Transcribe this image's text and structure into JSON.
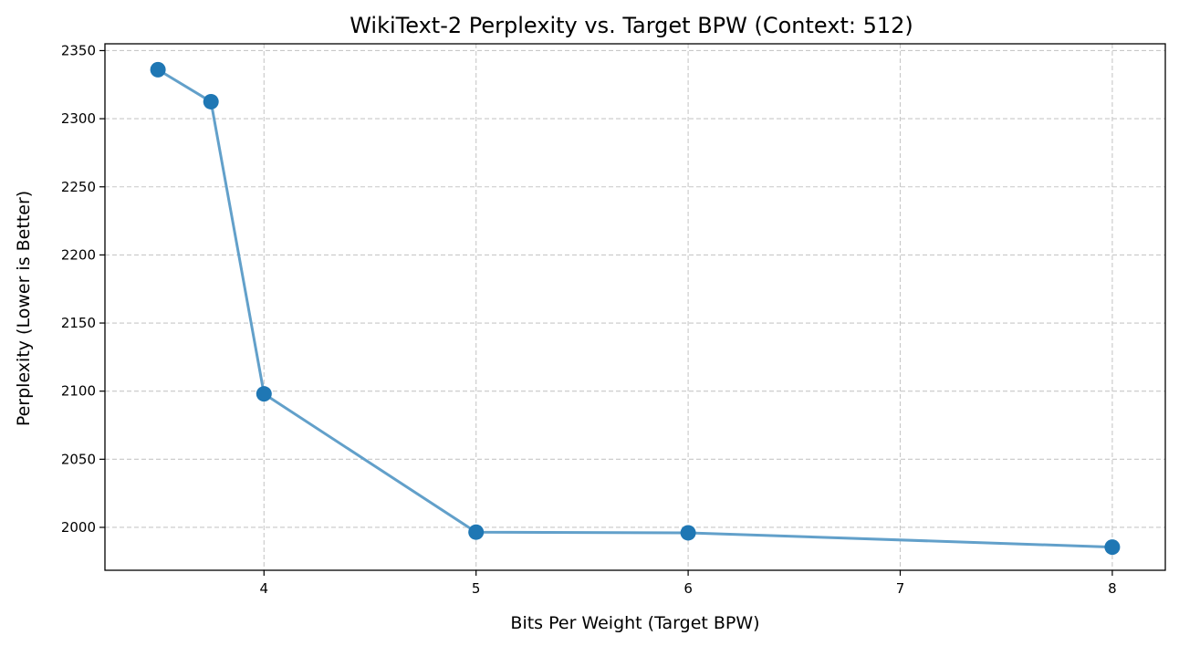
{
  "chart_data": {
    "type": "line",
    "title": "WikiText-2 Perplexity vs. Target BPW (Context: 512)",
    "xlabel": "Bits Per Weight (Target BPW)",
    "ylabel": "Perplexity (Lower is Better)",
    "xlim": [
      3.25,
      8.25
    ],
    "ylim": [
      1968.5,
      2355
    ],
    "x_ticks": [
      4,
      5,
      6,
      7,
      8
    ],
    "y_ticks": [
      2000,
      2050,
      2100,
      2150,
      2200,
      2250,
      2300,
      2350
    ],
    "grid": true,
    "series": [
      {
        "x": [
          3.5,
          3.75,
          4,
          5,
          6,
          8
        ],
        "y": [
          2336,
          2312.5,
          2098,
          1996.5,
          1996,
          1985.5
        ],
        "color": "#1f77b4",
        "line_color": "#62a0ca",
        "marker": "circle"
      }
    ]
  }
}
